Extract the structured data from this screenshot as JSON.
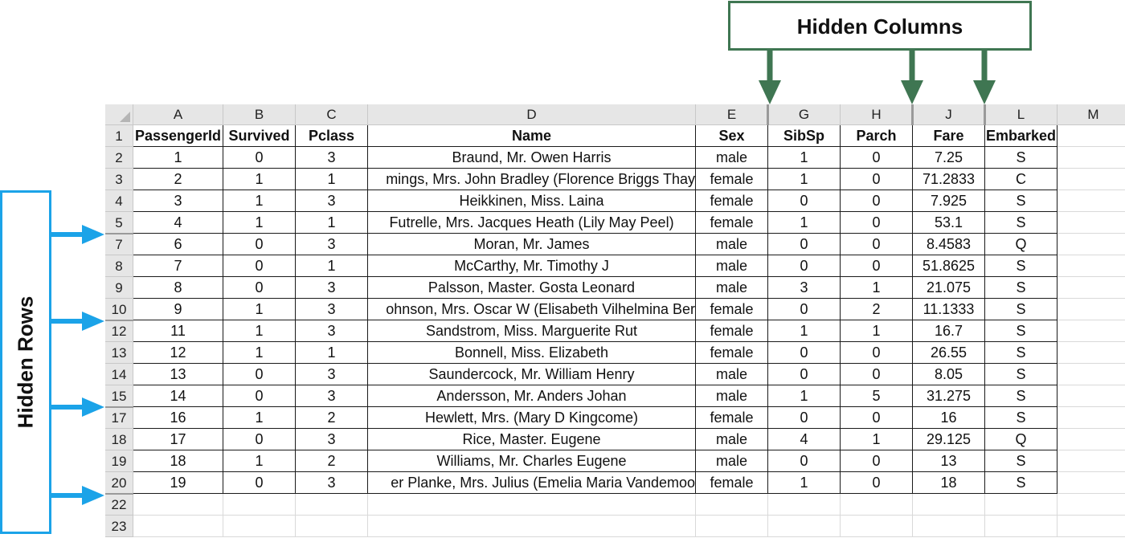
{
  "annotations": {
    "hidden_columns_label": "Hidden Columns",
    "hidden_rows_label": "Hidden Rows",
    "green_color": "#3f7652",
    "blue_color": "#1ba3e8"
  },
  "spreadsheet": {
    "column_letters": [
      "A",
      "B",
      "C",
      "D",
      "E",
      "G",
      "H",
      "J",
      "L",
      "M"
    ],
    "row_numbers": [
      "1",
      "2",
      "3",
      "4",
      "5",
      "7",
      "8",
      "9",
      "10",
      "12",
      "13",
      "14",
      "15",
      "17",
      "18",
      "19",
      "20",
      "22",
      "23"
    ],
    "headers": [
      "PassengerId",
      "Survived",
      "Pclass",
      "Name",
      "Sex",
      "SibSp",
      "Parch",
      "Fare",
      "Embarked"
    ],
    "rows": [
      [
        "1",
        "0",
        "3",
        "Braund, Mr. Owen Harris",
        "male",
        "1",
        "0",
        "7.25",
        "S"
      ],
      [
        "2",
        "1",
        "1",
        "mings, Mrs. John Bradley (Florence Briggs Thay",
        "female",
        "1",
        "0",
        "71.2833",
        "C"
      ],
      [
        "3",
        "1",
        "3",
        "Heikkinen, Miss. Laina",
        "female",
        "0",
        "0",
        "7.925",
        "S"
      ],
      [
        "4",
        "1",
        "1",
        "Futrelle, Mrs. Jacques Heath (Lily May Peel)",
        "female",
        "1",
        "0",
        "53.1",
        "S"
      ],
      [
        "6",
        "0",
        "3",
        "Moran, Mr. James",
        "male",
        "0",
        "0",
        "8.4583",
        "Q"
      ],
      [
        "7",
        "0",
        "1",
        "McCarthy, Mr. Timothy J",
        "male",
        "0",
        "0",
        "51.8625",
        "S"
      ],
      [
        "8",
        "0",
        "3",
        "Palsson, Master. Gosta Leonard",
        "male",
        "3",
        "1",
        "21.075",
        "S"
      ],
      [
        "9",
        "1",
        "3",
        "ohnson, Mrs. Oscar W (Elisabeth Vilhelmina Ber",
        "female",
        "0",
        "2",
        "11.1333",
        "S"
      ],
      [
        "11",
        "1",
        "3",
        "Sandstrom, Miss. Marguerite Rut",
        "female",
        "1",
        "1",
        "16.7",
        "S"
      ],
      [
        "12",
        "1",
        "1",
        "Bonnell, Miss. Elizabeth",
        "female",
        "0",
        "0",
        "26.55",
        "S"
      ],
      [
        "13",
        "0",
        "3",
        "Saundercock, Mr. William Henry",
        "male",
        "0",
        "0",
        "8.05",
        "S"
      ],
      [
        "14",
        "0",
        "3",
        "Andersson, Mr. Anders Johan",
        "male",
        "1",
        "5",
        "31.275",
        "S"
      ],
      [
        "16",
        "1",
        "2",
        "Hewlett, Mrs. (Mary D Kingcome)",
        "female",
        "0",
        "0",
        "16",
        "S"
      ],
      [
        "17",
        "0",
        "3",
        "Rice, Master. Eugene",
        "male",
        "4",
        "1",
        "29.125",
        "Q"
      ],
      [
        "18",
        "1",
        "2",
        "Williams, Mr. Charles Eugene",
        "male",
        "0",
        "0",
        "13",
        "S"
      ],
      [
        "19",
        "0",
        "3",
        "er Planke, Mrs. Julius (Emelia Maria Vandemoo",
        "female",
        "1",
        "0",
        "18",
        "S"
      ]
    ]
  }
}
